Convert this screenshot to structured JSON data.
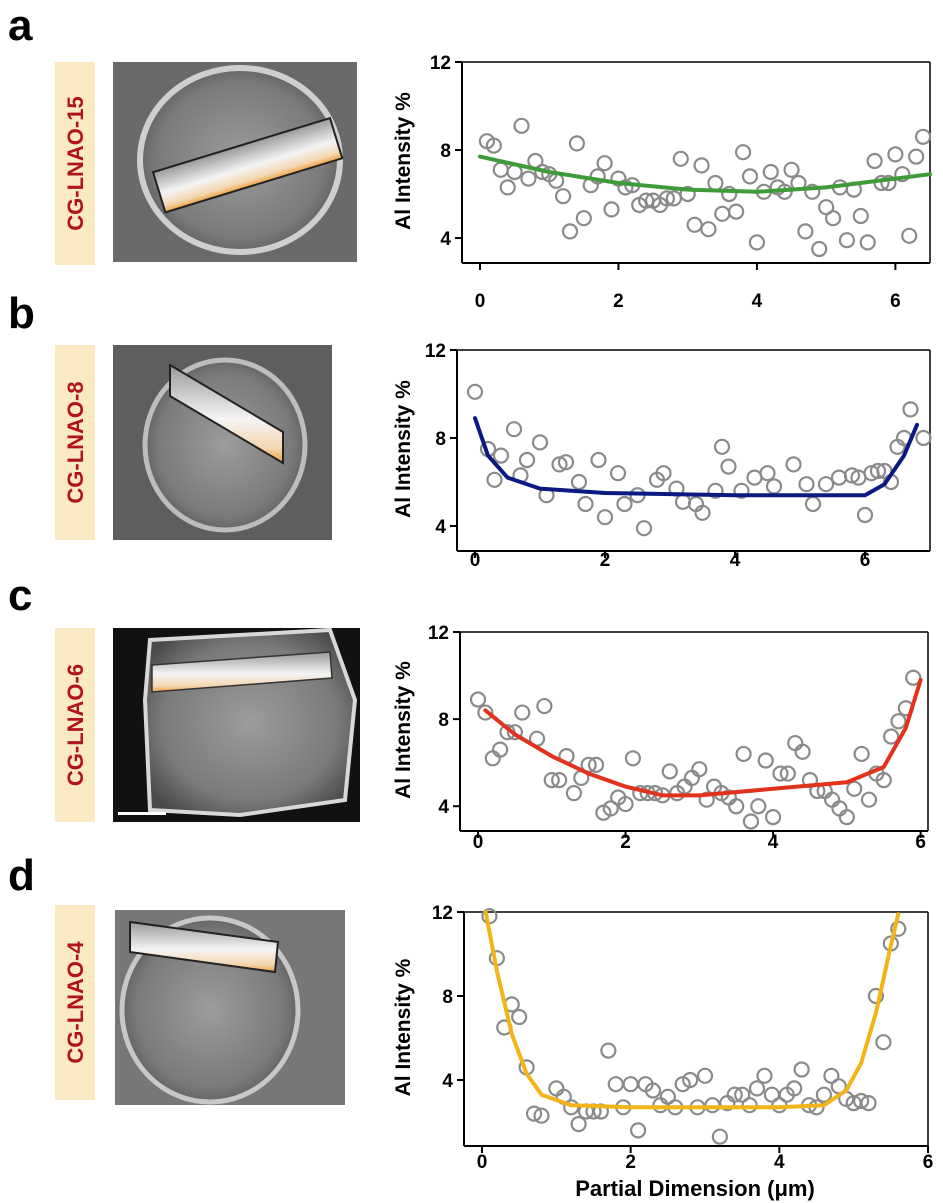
{
  "chart_data": [
    {
      "type": "scatter",
      "panel": "a",
      "sample": "CG-LNAO-15",
      "ylabel": "Al Intensity %",
      "xlim": [
        0,
        6.5
      ],
      "ylim": [
        3,
        12
      ],
      "xticks": [
        0,
        2,
        4,
        6
      ],
      "yticks": [
        4,
        8,
        12
      ],
      "marker_color": "#8a8a8a",
      "fit_color": "#3f9a3a",
      "x": [
        0.1,
        0.2,
        0.3,
        0.4,
        0.5,
        0.6,
        0.7,
        0.8,
        0.9,
        1.0,
        1.1,
        1.2,
        1.3,
        1.4,
        1.5,
        1.6,
        1.7,
        1.8,
        1.9,
        2.0,
        2.1,
        2.2,
        2.3,
        2.4,
        2.5,
        2.6,
        2.7,
        2.8,
        2.9,
        3.0,
        3.1,
        3.2,
        3.3,
        3.4,
        3.5,
        3.6,
        3.7,
        3.8,
        3.9,
        4.0,
        4.1,
        4.2,
        4.3,
        4.4,
        4.5,
        4.6,
        4.7,
        4.8,
        4.9,
        5.0,
        5.1,
        5.2,
        5.3,
        5.4,
        5.5,
        5.6,
        5.7,
        5.8,
        5.9,
        6.0,
        6.1,
        6.2,
        6.3,
        6.4
      ],
      "y": [
        8.4,
        8.2,
        7.1,
        6.3,
        7.0,
        9.1,
        6.7,
        7.5,
        7.0,
        6.9,
        6.6,
        5.9,
        4.3,
        8.3,
        4.9,
        6.4,
        6.8,
        7.4,
        5.3,
        6.7,
        6.3,
        6.4,
        5.5,
        5.7,
        5.7,
        5.5,
        5.8,
        5.8,
        7.6,
        6.0,
        4.6,
        7.3,
        4.4,
        6.5,
        5.1,
        6.0,
        5.2,
        7.9,
        6.8,
        3.8,
        6.1,
        7.0,
        6.3,
        6.1,
        7.1,
        6.5,
        4.3,
        6.1,
        3.5,
        5.4,
        4.9,
        6.3,
        3.9,
        6.2,
        5.0,
        3.8,
        7.5,
        6.5,
        6.5,
        7.8,
        6.9,
        4.1,
        7.7,
        8.6
      ],
      "fit_x": [
        0,
        1,
        2,
        3,
        4,
        5,
        6,
        6.5
      ],
      "fit_y": [
        7.7,
        7.0,
        6.5,
        6.2,
        6.1,
        6.3,
        6.7,
        6.9
      ]
    },
    {
      "type": "scatter",
      "panel": "b",
      "sample": "CG-LNAO-8",
      "ylabel": "Al Intensity %",
      "xlim": [
        0,
        7
      ],
      "ylim": [
        3,
        12
      ],
      "xticks": [
        0,
        2,
        4,
        6
      ],
      "yticks": [
        4,
        8,
        12
      ],
      "marker_color": "#8a8a8a",
      "fit_color": "#0a1a80",
      "x": [
        0,
        0.2,
        0.3,
        0.4,
        0.6,
        0.7,
        0.8,
        1.0,
        1.1,
        1.3,
        1.4,
        1.6,
        1.7,
        1.9,
        2.0,
        2.2,
        2.3,
        2.5,
        2.6,
        2.8,
        2.9,
        3.1,
        3.2,
        3.4,
        3.5,
        3.7,
        3.8,
        3.9,
        4.1,
        4.3,
        4.5,
        4.6,
        4.9,
        5.1,
        5.2,
        5.4,
        5.6,
        5.8,
        5.9,
        6.0,
        6.1,
        6.2,
        6.3,
        6.4,
        6.5,
        6.6,
        6.7,
        6.9
      ],
      "y": [
        10.1,
        7.5,
        6.1,
        7.2,
        8.4,
        6.3,
        7.0,
        7.8,
        5.4,
        6.8,
        6.9,
        6.0,
        5.0,
        7.0,
        4.4,
        6.4,
        5.0,
        5.4,
        3.9,
        6.1,
        6.4,
        5.7,
        5.1,
        5.0,
        4.6,
        5.6,
        7.6,
        6.7,
        5.6,
        6.2,
        6.4,
        5.8,
        6.8,
        5.9,
        5.0,
        5.9,
        6.2,
        6.3,
        6.2,
        4.5,
        6.4,
        6.5,
        6.5,
        6.0,
        7.6,
        8.0,
        9.3,
        8.0
      ],
      "fit_x": [
        0,
        0.2,
        0.5,
        1,
        2,
        4,
        6,
        6.3,
        6.6,
        6.8
      ],
      "fit_y": [
        8.9,
        7.2,
        6.2,
        5.7,
        5.5,
        5.4,
        5.4,
        5.9,
        7.2,
        8.6
      ]
    },
    {
      "type": "scatter",
      "panel": "c",
      "sample": "CG-LNAO-6",
      "ylabel": "Al Intensity %",
      "xlim": [
        0,
        6.1
      ],
      "ylim": [
        3,
        12
      ],
      "xticks": [
        0,
        2,
        4,
        6
      ],
      "yticks": [
        4,
        8,
        12
      ],
      "marker_color": "#8a8a8a",
      "fit_color": "#e3321b",
      "x": [
        0,
        0.1,
        0.2,
        0.3,
        0.4,
        0.5,
        0.6,
        0.8,
        0.9,
        1.0,
        1.1,
        1.2,
        1.3,
        1.4,
        1.5,
        1.6,
        1.7,
        1.8,
        1.9,
        2.0,
        2.1,
        2.2,
        2.3,
        2.4,
        2.5,
        2.6,
        2.7,
        2.8,
        2.9,
        3.0,
        3.1,
        3.2,
        3.3,
        3.4,
        3.5,
        3.6,
        3.7,
        3.8,
        3.9,
        4.0,
        4.1,
        4.2,
        4.3,
        4.4,
        4.5,
        4.6,
        4.7,
        4.8,
        4.9,
        5.0,
        5.1,
        5.2,
        5.3,
        5.4,
        5.5,
        5.6,
        5.7,
        5.8,
        5.9
      ],
      "y": [
        8.9,
        8.3,
        6.2,
        6.6,
        7.4,
        7.4,
        8.3,
        7.1,
        8.6,
        5.2,
        5.2,
        6.3,
        4.6,
        5.3,
        5.9,
        5.9,
        3.7,
        3.9,
        4.4,
        4.1,
        6.2,
        4.6,
        4.6,
        4.6,
        4.5,
        5.6,
        4.6,
        4.9,
        5.3,
        5.7,
        4.3,
        4.9,
        4.6,
        4.4,
        4.0,
        6.4,
        3.3,
        4.0,
        6.1,
        3.5,
        5.5,
        5.5,
        6.9,
        6.5,
        5.2,
        4.7,
        4.7,
        4.3,
        3.9,
        3.5,
        4.8,
        6.4,
        4.3,
        5.5,
        5.2,
        7.2,
        7.9,
        8.5,
        9.9
      ],
      "fit_x": [
        0.1,
        0.5,
        1,
        1.5,
        2,
        2.5,
        3,
        4,
        5,
        5.5,
        5.8,
        6
      ],
      "fit_y": [
        8.4,
        7.3,
        6.3,
        5.5,
        4.9,
        4.5,
        4.5,
        4.8,
        5.1,
        5.8,
        7.6,
        9.8
      ]
    },
    {
      "type": "scatter",
      "panel": "d",
      "sample": "CG-LNAO-4",
      "ylabel": "Al Intensity %",
      "xlabel": "Partial Dimension (μm)",
      "xlim": [
        0,
        6
      ],
      "ylim": [
        1,
        12
      ],
      "xticks": [
        0,
        2,
        4,
        6
      ],
      "yticks": [
        4,
        8,
        12
      ],
      "marker_color": "#8a8a8a",
      "fit_color": "#f2b418",
      "x": [
        0.1,
        0.2,
        0.3,
        0.4,
        0.5,
        0.6,
        0.7,
        0.8,
        1.0,
        1.1,
        1.2,
        1.3,
        1.4,
        1.5,
        1.6,
        1.7,
        1.8,
        1.9,
        2.0,
        2.1,
        2.2,
        2.3,
        2.4,
        2.5,
        2.6,
        2.7,
        2.8,
        2.9,
        3.0,
        3.1,
        3.2,
        3.3,
        3.4,
        3.5,
        3.6,
        3.7,
        3.8,
        3.9,
        4.0,
        4.1,
        4.2,
        4.3,
        4.4,
        4.5,
        4.6,
        4.7,
        4.8,
        4.9,
        5.0,
        5.1,
        5.2,
        5.3,
        5.4,
        5.5,
        5.6
      ],
      "y": [
        11.8,
        9.8,
        6.5,
        7.6,
        7.0,
        4.6,
        2.4,
        2.3,
        3.6,
        3.2,
        2.7,
        1.9,
        2.5,
        2.5,
        2.5,
        5.4,
        3.8,
        2.7,
        3.8,
        1.6,
        3.8,
        3.5,
        2.8,
        3.2,
        2.7,
        3.8,
        4.0,
        2.7,
        4.2,
        2.8,
        1.3,
        2.9,
        3.3,
        3.3,
        2.8,
        3.6,
        4.2,
        3.3,
        2.8,
        3.3,
        3.6,
        4.5,
        2.8,
        2.7,
        3.3,
        4.2,
        3.7,
        3.1,
        2.9,
        3.0,
        2.9,
        8.0,
        5.8,
        10.5,
        11.2
      ],
      "fit_x": [
        0.05,
        0.2,
        0.4,
        0.6,
        0.8,
        1.2,
        2,
        3,
        4,
        4.6,
        4.9,
        5.1,
        5.3,
        5.5,
        5.6
      ],
      "fit_y": [
        12,
        9.2,
        6.2,
        4.3,
        3.3,
        2.8,
        2.7,
        2.7,
        2.7,
        2.8,
        3.5,
        4.8,
        7.2,
        10.4,
        11.9
      ]
    }
  ]
}
